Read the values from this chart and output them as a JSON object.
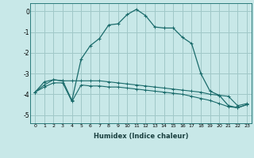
{
  "xlabel": "Humidex (Indice chaleur)",
  "background_color": "#c8e8e8",
  "grid_color": "#a0c8c8",
  "line_color": "#1a6b6b",
  "xlim": [
    -0.5,
    23.5
  ],
  "ylim": [
    -5.4,
    0.4
  ],
  "xticks": [
    0,
    1,
    2,
    3,
    4,
    5,
    6,
    7,
    8,
    9,
    10,
    11,
    12,
    13,
    14,
    15,
    16,
    17,
    18,
    19,
    20,
    21,
    22,
    23
  ],
  "yticks": [
    0,
    -1,
    -2,
    -3,
    -4,
    -5
  ],
  "line_main_x": [
    0,
    1,
    2,
    3,
    4,
    5,
    6,
    7,
    8,
    9,
    10,
    11,
    12,
    13,
    14,
    15,
    16,
    17,
    18,
    19,
    20,
    21,
    22,
    23
  ],
  "line_main_y": [
    -3.9,
    -3.4,
    -3.3,
    -3.35,
    -4.3,
    -2.3,
    -1.65,
    -1.3,
    -0.65,
    -0.6,
    -0.15,
    0.1,
    -0.2,
    -0.75,
    -0.8,
    -0.8,
    -1.25,
    -1.55,
    -3.0,
    -3.85,
    -4.05,
    -4.55,
    -4.65,
    -4.5
  ],
  "line_upper_x": [
    0,
    1,
    2,
    3,
    4,
    5,
    6,
    7,
    8,
    9,
    10,
    11,
    12,
    13,
    14,
    15,
    16,
    17,
    18,
    19,
    20,
    21,
    22,
    23
  ],
  "line_upper_y": [
    -3.9,
    -3.55,
    -3.3,
    -3.35,
    -3.35,
    -3.35,
    -3.35,
    -3.35,
    -3.4,
    -3.45,
    -3.5,
    -3.55,
    -3.6,
    -3.65,
    -3.7,
    -3.75,
    -3.8,
    -3.85,
    -3.9,
    -4.0,
    -4.05,
    -4.1,
    -4.55,
    -4.45
  ],
  "line_lower_x": [
    0,
    1,
    2,
    3,
    4,
    5,
    6,
    7,
    8,
    9,
    10,
    11,
    12,
    13,
    14,
    15,
    16,
    17,
    18,
    19,
    20,
    21,
    22,
    23
  ],
  "line_lower_y": [
    -3.9,
    -3.65,
    -3.45,
    -3.45,
    -4.35,
    -3.55,
    -3.6,
    -3.6,
    -3.65,
    -3.65,
    -3.7,
    -3.75,
    -3.8,
    -3.85,
    -3.9,
    -3.95,
    -4.0,
    -4.1,
    -4.2,
    -4.3,
    -4.45,
    -4.6,
    -4.65,
    -4.5
  ]
}
